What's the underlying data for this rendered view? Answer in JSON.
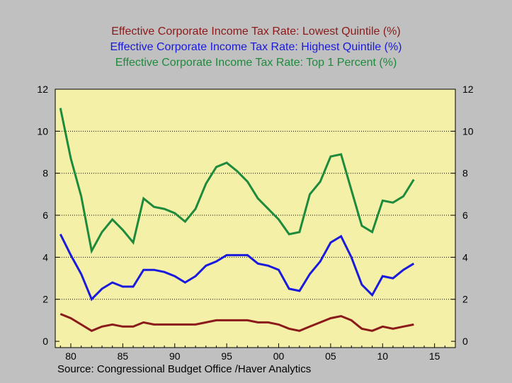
{
  "chart_data": {
    "type": "line",
    "titles": [
      {
        "text": "Effective Corporate Income Tax Rate: Lowest Quintile (%)",
        "color": "#8b1a1a"
      },
      {
        "text": "Effective Corporate Income Tax Rate: Highest Quintile (%)",
        "color": "#1a1adc"
      },
      {
        "text": "Effective Corporate Income Tax Rate: Top 1 Percent (%)",
        "color": "#1e8a3c"
      }
    ],
    "x": [
      1979,
      1980,
      1981,
      1982,
      1983,
      1984,
      1985,
      1986,
      1987,
      1988,
      1989,
      1990,
      1991,
      1992,
      1993,
      1994,
      1995,
      1996,
      1997,
      1998,
      1999,
      2000,
      2001,
      2002,
      2003,
      2004,
      2005,
      2006,
      2007,
      2008,
      2009,
      2010,
      2011,
      2012,
      2013
    ],
    "series": [
      {
        "color": "#8b1a1a",
        "values": [
          1.3,
          1.1,
          0.8,
          0.5,
          0.7,
          0.8,
          0.7,
          0.7,
          0.9,
          0.8,
          0.8,
          0.8,
          0.8,
          0.8,
          0.9,
          1.0,
          1.0,
          1.0,
          1.0,
          0.9,
          0.9,
          0.8,
          0.6,
          0.5,
          0.7,
          0.9,
          1.1,
          1.2,
          1.0,
          0.6,
          0.5,
          0.7,
          0.6,
          0.7,
          0.8
        ]
      },
      {
        "color": "#1a1adc",
        "values": [
          5.1,
          4.1,
          3.2,
          2.0,
          2.5,
          2.8,
          2.6,
          2.6,
          3.4,
          3.4,
          3.3,
          3.1,
          2.8,
          3.1,
          3.6,
          3.8,
          4.1,
          4.1,
          4.1,
          3.7,
          3.6,
          3.4,
          2.5,
          2.4,
          3.2,
          3.8,
          4.7,
          5.0,
          4.0,
          2.7,
          2.2,
          3.1,
          3.0,
          3.4,
          3.7
        ]
      },
      {
        "color": "#1e8a3c",
        "values": [
          11.1,
          8.7,
          6.9,
          4.3,
          5.2,
          5.8,
          5.3,
          4.7,
          6.8,
          6.4,
          6.3,
          6.1,
          5.7,
          6.3,
          7.5,
          8.3,
          8.5,
          8.1,
          7.6,
          6.8,
          6.3,
          5.8,
          5.1,
          5.2,
          7.0,
          7.6,
          8.8,
          8.9,
          7.2,
          5.5,
          5.2,
          6.7,
          6.6,
          6.9,
          7.7
        ]
      }
    ],
    "xlim": [
      1978.5,
      2017
    ],
    "ylim": [
      -0.3,
      12
    ],
    "xticks": [
      1980,
      1985,
      1990,
      1995,
      2000,
      2005,
      2010,
      2015
    ],
    "xtick_labels": [
      "80",
      "85",
      "90",
      "95",
      "00",
      "05",
      "10",
      "15"
    ],
    "yticks": [
      0,
      2,
      4,
      6,
      8,
      10,
      12
    ],
    "gridlines": [
      2,
      4,
      6,
      8,
      10
    ],
    "plot_bg": "#f4f0a8",
    "source": "Source:   Congressional Budget Office /Haver Analytics"
  }
}
